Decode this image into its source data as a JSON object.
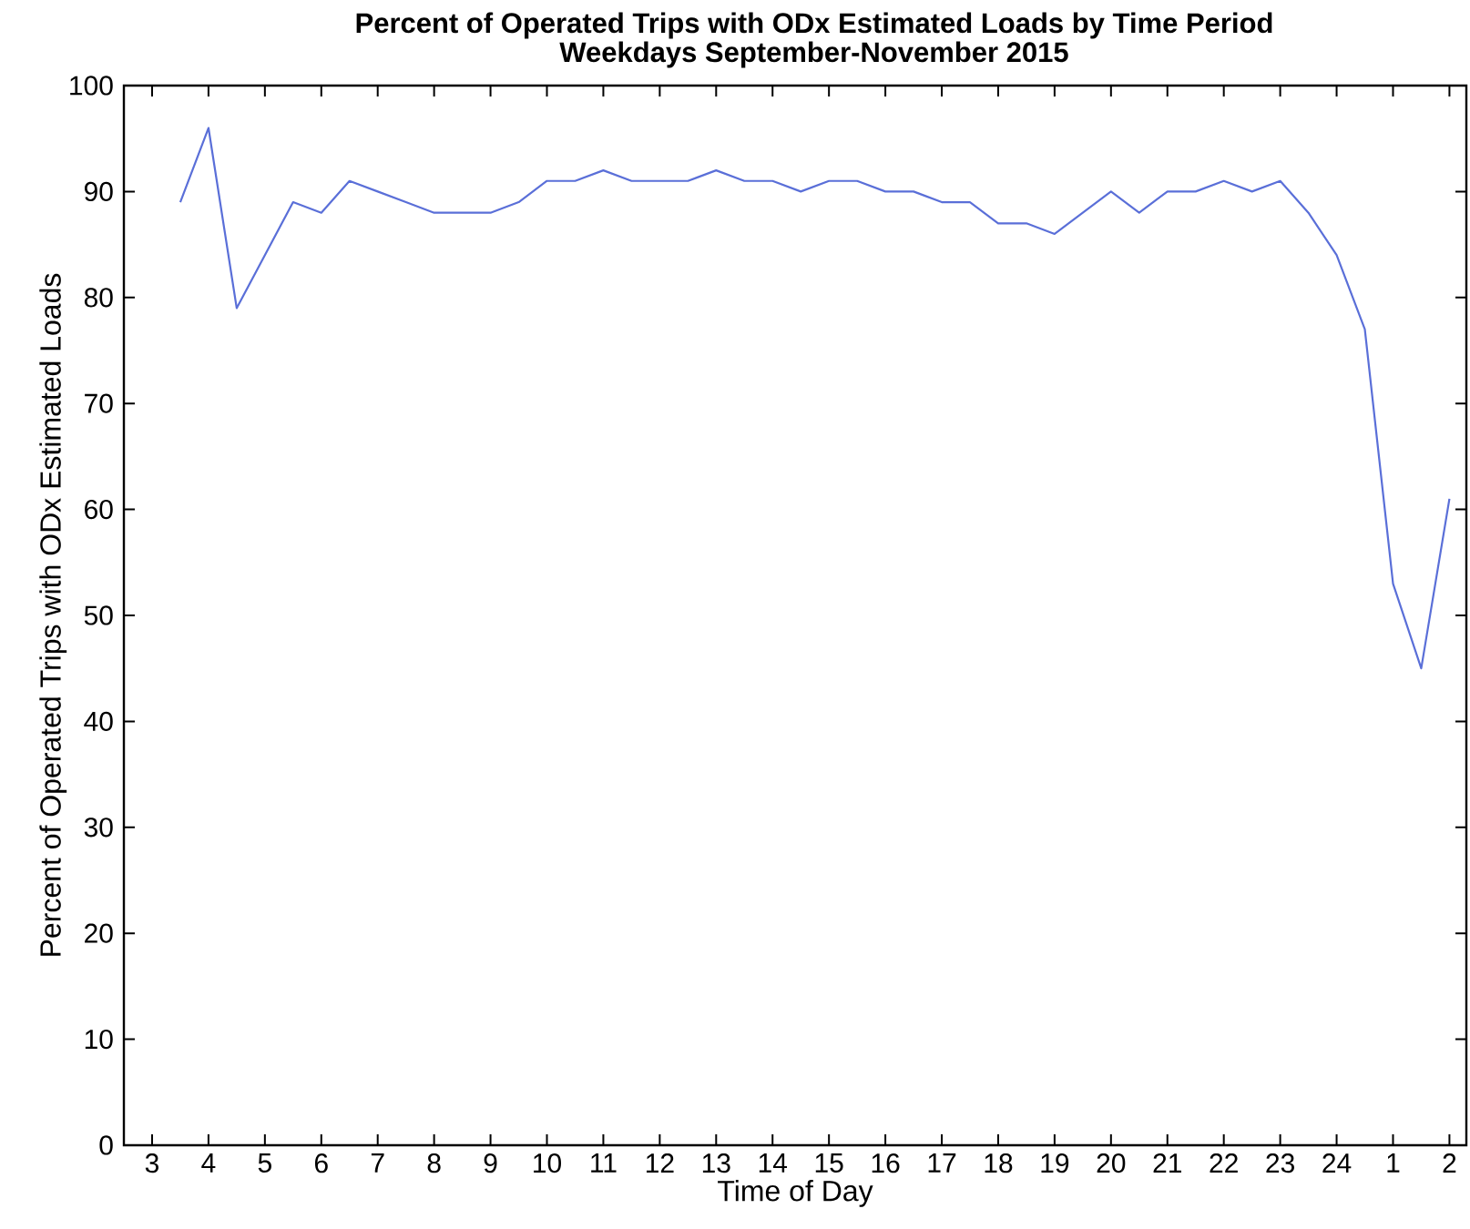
{
  "chart_data": {
    "type": "line",
    "title": "Percent of Operated Trips with ODx Estimated Loads by Time Period",
    "subtitle": "Weekdays September-November 2015",
    "xlabel": "Time of Day",
    "ylabel": "Percent of Operated Trips with ODx Estimated Loads",
    "categories": [
      "3",
      null,
      "4",
      null,
      "5",
      null,
      "6",
      null,
      "7",
      null,
      "8",
      null,
      "9",
      null,
      "10",
      null,
      "11",
      null,
      "12",
      null,
      "13",
      null,
      "14",
      null,
      "15",
      null,
      "16",
      null,
      "17",
      null,
      "18",
      null,
      "19",
      null,
      "20",
      null,
      "21",
      null,
      "22",
      null,
      "23",
      null,
      "24",
      null,
      "1",
      null,
      "2"
    ],
    "series": [
      {
        "color": "#5a6fd8",
        "values": [
          null,
          89,
          96,
          79,
          84,
          89,
          88,
          91,
          90,
          89,
          88,
          88,
          88,
          89,
          91,
          91,
          92,
          91,
          91,
          91,
          92,
          91,
          91,
          90,
          91,
          91,
          90,
          90,
          89,
          89,
          87,
          87,
          86,
          88,
          90,
          88,
          90,
          90,
          91,
          90,
          91,
          88,
          84,
          77,
          53,
          45,
          61
        ]
      }
    ],
    "ylim": [
      0,
      100
    ],
    "yticks": [
      0,
      10,
      20,
      30,
      40,
      50,
      60,
      70,
      80,
      90,
      100
    ],
    "marker": "none",
    "line_style": "solid"
  }
}
